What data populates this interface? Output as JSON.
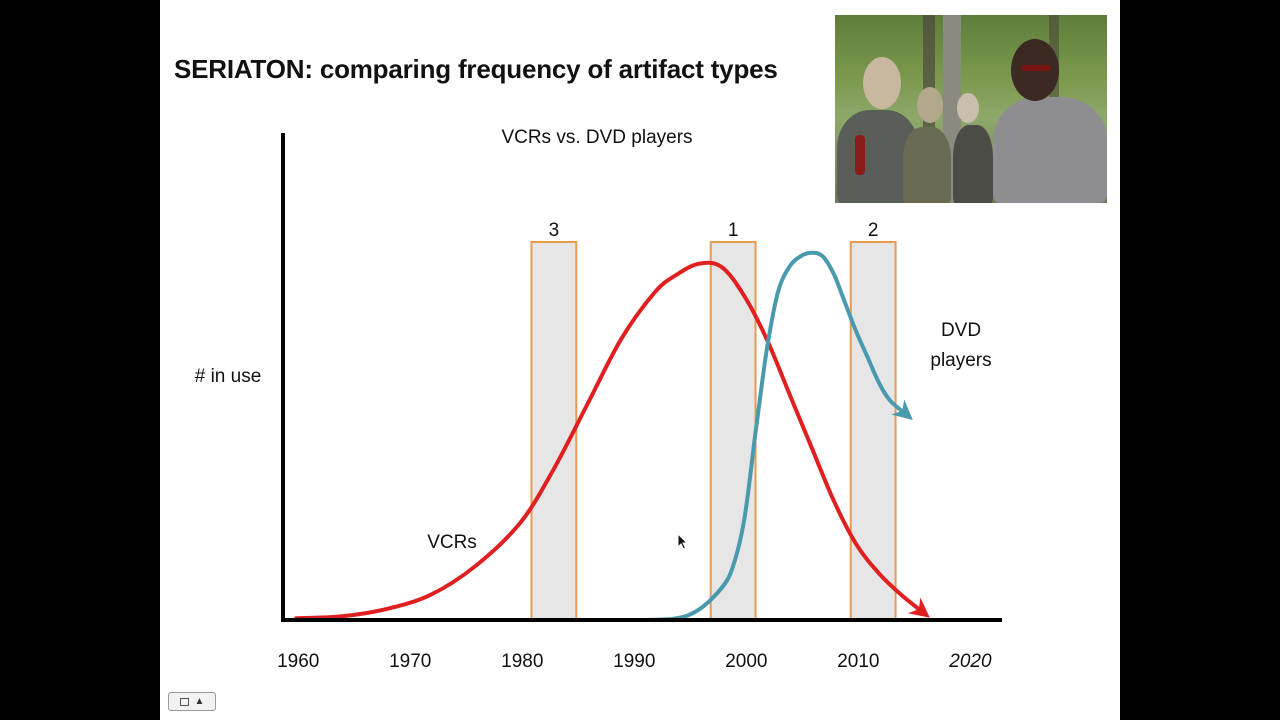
{
  "slide": {
    "title": "SERIATON: comparing frequency of artifact types"
  },
  "photo": {
    "description_icon": "zombies-photo"
  },
  "chart_data": {
    "type": "line",
    "title": "VCRs vs. DVD players",
    "ylabel": "# in use",
    "xlabel": "",
    "x_ticks": [
      "1960",
      "1970",
      "1980",
      "1990",
      "2000",
      "2010",
      "2020"
    ],
    "xlim": [
      1959,
      2023
    ],
    "ylim": [
      0,
      100
    ],
    "series": [
      {
        "name": "VCRs",
        "color": "#e02020",
        "points": [
          [
            1960,
            0.5
          ],
          [
            1964,
            1
          ],
          [
            1968,
            3
          ],
          [
            1972,
            7
          ],
          [
            1976,
            15
          ],
          [
            1980,
            27
          ],
          [
            1983,
            42
          ],
          [
            1986,
            60
          ],
          [
            1989,
            78
          ],
          [
            1992,
            91
          ],
          [
            1994,
            96
          ],
          [
            1996,
            99
          ],
          [
            1998,
            98
          ],
          [
            2000,
            90
          ],
          [
            2002,
            78
          ],
          [
            2004,
            63
          ],
          [
            2006,
            48
          ],
          [
            2008,
            33
          ],
          [
            2010,
            21
          ],
          [
            2012,
            13
          ],
          [
            2014,
            7
          ],
          [
            2016,
            2
          ]
        ]
      },
      {
        "name": "DVD players",
        "name_lines": [
          "DVD",
          "players"
        ],
        "color": "#4a9aae",
        "points": [
          [
            1991,
            0
          ],
          [
            1994,
            0.5
          ],
          [
            1996,
            3
          ],
          [
            1998,
            9
          ],
          [
            1999,
            15
          ],
          [
            2000,
            28
          ],
          [
            2001,
            52
          ],
          [
            2002,
            75
          ],
          [
            2003,
            91
          ],
          [
            2004,
            98
          ],
          [
            2005,
            101
          ],
          [
            2006,
            102
          ],
          [
            2007,
            101
          ],
          [
            2008,
            96
          ],
          [
            2009,
            88
          ],
          [
            2010,
            80
          ],
          [
            2011,
            73
          ],
          [
            2012,
            66
          ],
          [
            2013,
            61
          ],
          [
            2014.5,
            57
          ]
        ]
      }
    ],
    "highlight_bands": [
      {
        "label": "3",
        "x_start": 1981,
        "x_end": 1985
      },
      {
        "label": "1",
        "x_start": 1997,
        "x_end": 2001
      },
      {
        "label": "2",
        "x_start": 2009.5,
        "x_end": 2013.5
      }
    ],
    "band_fill": "#e6e6e6",
    "band_stroke": "#e89a55",
    "last_tick_italic": true
  },
  "footer": {
    "button_icon": "slide-nav-icon",
    "button_glyph": "▲"
  }
}
